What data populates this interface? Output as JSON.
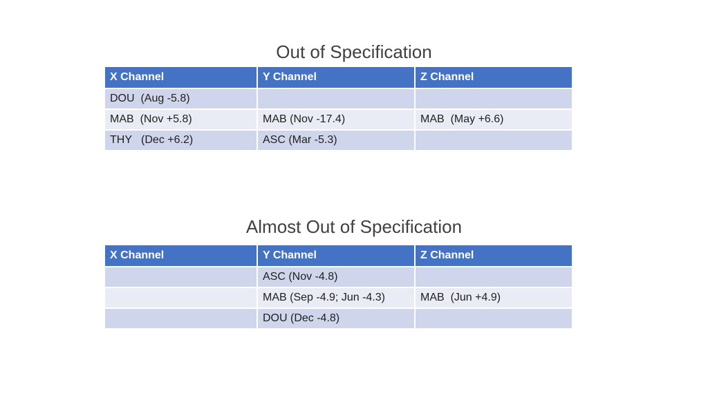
{
  "sections": [
    {
      "title": "Out of Specification",
      "headers": [
        "X Channel",
        "Y Channel",
        "Z Channel"
      ],
      "rows": [
        [
          "DOU  (Aug -5.8)",
          "",
          ""
        ],
        [
          "MAB  (Nov +5.8)",
          "MAB (Nov -17.4)",
          "MAB  (May +6.6)"
        ],
        [
          "THY   (Dec +6.2)",
          "ASC (Mar -5.3)",
          ""
        ]
      ]
    },
    {
      "title": "Almost Out of Specification",
      "headers": [
        "X Channel",
        "Y Channel",
        "Z Channel"
      ],
      "rows": [
        [
          "",
          "ASC (Nov -4.8)",
          ""
        ],
        [
          "",
          "MAB (Sep -4.9; Jun -4.3)",
          "MAB  (Jun +4.9)"
        ],
        [
          "",
          "DOU (Dec -4.8)",
          ""
        ]
      ]
    }
  ],
  "colors": {
    "header_bg": "#4472c4",
    "row_odd_bg": "#cfd5ea",
    "row_even_bg": "#e9ebf5",
    "title_text": "#404040"
  }
}
